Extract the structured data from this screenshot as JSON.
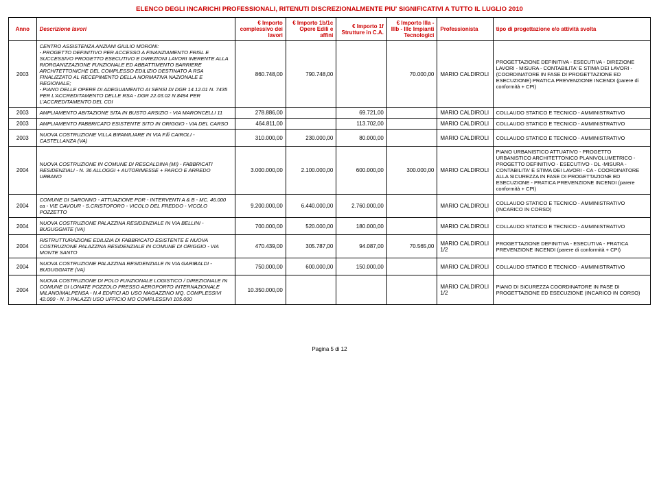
{
  "title": "ELENCO DEGLI INCARICHI PROFESSIONALI, RITENUTI DISCREZIONALMENTE PIU' SIGNIFICATIVI A TUTTO IL LUGLIO 2010",
  "headers": {
    "anno": "Anno",
    "desc": "Descrizione lavori",
    "imp1": "€ Importo complessivo dei lavori",
    "imp2": "€ Importo 1b/1c Opere Edili e affini",
    "imp3": "€ Importo 1f Strutture in C.A.",
    "imp4": "€ Importo IIIa - IIIb - IIIc Impianti Tecnologici",
    "prof": "Professionista",
    "tipo": "tipo di progettazione e/o attività svolta"
  },
  "rows": [
    {
      "anno": "2003",
      "desc": "CENTRO ASSISTENZA ANZIANI GIULIO MORONI:\n- PROGETTO DEFINITIVO PER ACCESSO A FINANZIAMENTO FRISL E SUCCESSIVO PROGETTO ESECUTIVO E DIREZIONI LAVORI INERENTE ALLA RIORGANIZZAZIONE FUNZIONALE ED ABBATTIMENTO BARRIERE ARCHITETTONICHE DEL COMPLESSO EDILIZIO DESTINATO A RSA FINALIZZATO AL RECEPIMENTO DELLA NORMATIVA NAZIONALE E REGIONALE;\n- PIANO DELLE OPERE DI ADEGUAMENTO AI SENSI DI DGR 14.12.01 N. 7435 PER L'ACCREDITAMENTO DELLE RSA - DGR 22.03.02 N.8494 PER L'ACCREDITAMENTO DEL CDI",
      "imp1": "860.748,00",
      "imp2": "790.748,00",
      "imp3": "",
      "imp4": "70.000,00",
      "prof": "MARIO CALDIROLI",
      "tipo": "PROGETTAZIONE DEFINITIVA - ESECUTIVA - DIREZIONE LAVORI - MISURA - CONTABILITA' E STIMA DEI LAVORI - (COORDINATORE IN FASE DI PROGETTAZIONE ED ESECUZIONE) PRATICA PREVENZIONE INCENDI (parere di conformità + CPI)"
    },
    {
      "anno": "2003",
      "desc": "AMPLIAMENTO ABITAZIONE SITA IN BUSTO ARSIZIO - VIA MARONCELLI 11",
      "imp1": "278.886,00",
      "imp2": "",
      "imp3": "69.721,00",
      "imp4": "",
      "prof": "MARIO CALDIROLI",
      "tipo": "COLLAUDO STATICO E TECNICO - AMMINISTRATIVO"
    },
    {
      "anno": "2003",
      "desc": "AMPLIAMENTO FABBRICATO ESISTENTE SITO IN ORIGGIO - VIA DEL CARSO",
      "imp1": "464.811,00",
      "imp2": "",
      "imp3": "113.702,00",
      "imp4": "",
      "prof": "MARIO CALDIROLI",
      "tipo": "COLLAUDO STATICO E TECNICO - AMMINISTRATIVO"
    },
    {
      "anno": "2003",
      "desc": "NUOVA COSTRUZIONE VILLA BIFAMILIARE IN VIA F.lli CAIROLI - CASTELLANZA (VA)",
      "imp1": "310.000,00",
      "imp2": "230.000,00",
      "imp3": "80.000,00",
      "imp4": "",
      "prof": "MARIO CALDIROLI",
      "tipo": "COLLAUDO STATICO E TECNICO - AMMINISTRATIVO"
    },
    {
      "anno": "2004",
      "desc": "NUOVA COSTRUZIONE IN COMUNE DI RESCALDINA (MI) - FABBRICATI RESIDENZIALI - N. 36 ALLOGGI + AUTORIMESSE + PARCO E ARREDO URBANO",
      "imp1": "3.000.000,00",
      "imp2": "2.100.000,00",
      "imp3": "600.000,00",
      "imp4": "300.000,00",
      "prof": "MARIO CALDIROLI",
      "tipo": "PIANO URBANISTICO ATTUATIVO - PROGETTO URBANISTICO ARCHITETTONICO PLANIVOLUMETRICO - PROGETTO DEFINITIVO - ESECUTIVO - DL -MISURA - CONTABILITA' E STIMA DEI LAVORI - CA - COORDINATORE ALLA SICUREZZA IN FASE DI PROGETTAZIONE ED ESECUZIONE - PRATICA PREVENZIONE INCENDI (parere conformità + CPI)"
    },
    {
      "anno": "2004",
      "desc": "COMUNE DI SARONNO - ATTUAZIONE PDR - INTERVENTI A & B - MC. 46.000 ca - VIE CAVOUR - S.CRISTOFORO - VICOLO DEL FREDDO - VICOLO POZZETTO",
      "imp1": "9.200.000,00",
      "imp2": "6.440.000,00",
      "imp3": "2.760.000,00",
      "imp4": "",
      "prof": "MARIO CALDIROLI",
      "tipo": "COLLAUDO STATICO E TECNICO - AMMINISTRATIVO\n(INCARICO IN CORSO)"
    },
    {
      "anno": "2004",
      "desc": "NUOVA COSTRUZIONE PALAZZINA RESIDENZIALE IN VIA BELLINI - BUGUGGIATE (VA)",
      "imp1": "700.000,00",
      "imp2": "520.000,00",
      "imp3": "180.000,00",
      "imp4": "",
      "prof": "MARIO CALDIROLI",
      "tipo": "COLLAUDO STATICO E TECNICO - AMMINISTRATIVO"
    },
    {
      "anno": "2004",
      "desc": "RISTRUTTURAZIONE EDILIZIA DI FABBRICATO ESISTENTE E NUOVA COSTRUZIONE PALAZZINA RESIDENZIALE IN COMUNE DI ORIGGIO - VIA MONTE SANTO",
      "imp1": "470.439,00",
      "imp2": "305.787,00",
      "imp3": "94.087,00",
      "imp4": "70.565,00",
      "prof": "MARIO CALDIROLI 1/2",
      "tipo": "PROGETTAZIONE DEFINITIVA - ESECUTIVA - PRATICA PREVENZIONE INCENDI (parere di conformità + CPI)"
    },
    {
      "anno": "2004",
      "desc": "NUOVA COSTRUZIONE PALAZZINA RESIDENZIALE IN VIA GARIBALDI - BUGUGGIATE (VA)",
      "imp1": "750.000,00",
      "imp2": "600.000,00",
      "imp3": "150.000,00",
      "imp4": "",
      "prof": "MARIO CALDIROLI",
      "tipo": "COLLAUDO STATICO E TECNICO - AMMINISTRATIVO"
    },
    {
      "anno": "2004",
      "desc": "NUOVA COSTRUZIONE DI POLO FUNZIONALE LOGISTICO / DIREZIONALE IN COMUNE DI LONATE POZZOLO PRESSO AEROPORTO INTERNAZIONALE MILANO/MALPENSA - N.4 EDIFICI AD USO MAGAZZINO MQ. COMPLESSIVI 42.000 - N. 3 PALAZZI USO UFFICIO MO COMPLESSIVI 105.000",
      "imp1": "10.350.000,00",
      "imp2": "",
      "imp3": "",
      "imp4": "",
      "prof": "MARIO CALDIROLI 1/2",
      "tipo": "PIANO DI SICUREZZA          COORDINATORE IN FASE DI PROGETTAZIONE ED ESECUZIONE (INCARICO IN CORSO)"
    }
  ],
  "footer": "Pagina 5 di 12"
}
